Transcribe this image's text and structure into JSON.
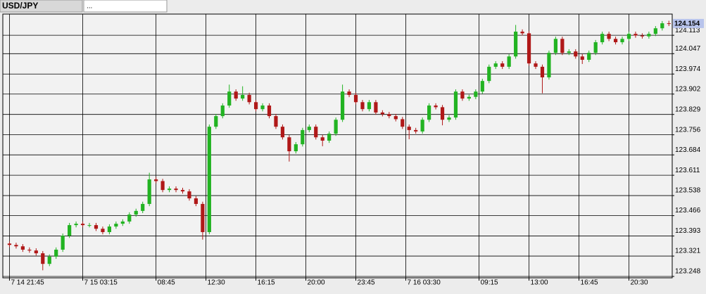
{
  "tabs": [
    "USD/JPY",
    "..."
  ],
  "chart_data": {
    "type": "candlestick",
    "x": [
      0,
      2,
      4,
      6,
      8,
      10,
      12,
      14,
      16,
      18,
      20,
      22,
      24,
      26,
      28,
      30,
      32,
      34,
      36,
      38,
      40,
      42,
      44,
      46,
      48,
      50,
      52,
      54,
      56,
      58,
      60,
      62,
      64,
      66,
      68,
      70,
      72,
      74,
      76,
      78,
      80,
      82,
      84,
      86,
      88,
      90,
      92,
      94,
      96,
      98,
      100,
      102,
      104,
      106,
      108,
      110,
      112,
      114,
      116,
      118,
      120,
      122,
      124,
      126,
      128,
      130,
      132,
      134,
      136,
      138,
      140,
      142,
      144,
      146,
      148,
      150,
      152,
      154,
      156,
      158,
      160,
      162,
      164,
      166,
      168,
      170,
      172,
      174,
      176,
      178,
      180,
      182,
      184,
      186,
      188,
      190,
      192,
      194,
      196,
      198
    ],
    "open": [
      123.366,
      123.361,
      123.356,
      123.344,
      123.341,
      123.331,
      123.293,
      123.319,
      123.344,
      123.394,
      123.432,
      123.437,
      123.432,
      123.432,
      123.419,
      123.407,
      123.427,
      123.437,
      123.445,
      123.47,
      123.483,
      123.508,
      123.596,
      123.59,
      123.558,
      123.563,
      123.558,
      123.553,
      123.528,
      123.508,
      123.407,
      123.785,
      123.823,
      123.861,
      123.911,
      123.886,
      123.899,
      123.873,
      123.848,
      123.861,
      123.823,
      123.785,
      123.747,
      123.697,
      123.722,
      123.773,
      123.785,
      123.747,
      123.735,
      123.76,
      123.81,
      123.911,
      123.899,
      123.873,
      123.848,
      123.873,
      123.836,
      123.83,
      123.823,
      123.812,
      123.785,
      123.773,
      123.768,
      123.81,
      123.861,
      123.855,
      123.81,
      123.818,
      123.911,
      123.886,
      123.892,
      123.911,
      123.949,
      124.0,
      124.012,
      124.0,
      124.037,
      124.126,
      124.12,
      124.012,
      124.0,
      123.962,
      124.05,
      124.1,
      124.05,
      124.055,
      124.037,
      124.025,
      124.05,
      124.088,
      124.118,
      124.1,
      124.088,
      124.1,
      124.118,
      124.112,
      124.109,
      124.118,
      124.138,
      124.156
    ],
    "high": [
      123.374,
      123.369,
      123.364,
      123.352,
      123.349,
      123.339,
      123.327,
      123.352,
      123.402,
      123.44,
      123.445,
      123.445,
      123.44,
      123.44,
      123.427,
      123.435,
      123.445,
      123.453,
      123.478,
      123.491,
      123.516,
      123.62,
      123.604,
      123.598,
      123.571,
      123.571,
      123.566,
      123.561,
      123.536,
      123.516,
      123.793,
      123.831,
      123.869,
      123.936,
      123.919,
      123.93,
      123.907,
      123.881,
      123.869,
      123.869,
      123.831,
      123.793,
      123.755,
      123.73,
      123.781,
      123.793,
      123.793,
      123.755,
      123.768,
      123.818,
      123.936,
      123.919,
      123.907,
      123.881,
      123.881,
      123.881,
      123.844,
      123.838,
      123.831,
      123.82,
      123.793,
      123.781,
      123.818,
      123.869,
      123.869,
      123.863,
      123.826,
      123.919,
      123.919,
      123.9,
      123.919,
      123.957,
      124.008,
      124.02,
      124.02,
      124.045,
      124.15,
      124.134,
      124.128,
      124.02,
      124.008,
      124.058,
      124.108,
      124.108,
      124.063,
      124.063,
      124.045,
      124.058,
      124.096,
      124.126,
      124.126,
      124.108,
      124.108,
      124.126,
      124.126,
      124.12,
      124.126,
      124.146,
      124.164,
      124.165
    ],
    "low": [
      123.353,
      123.348,
      123.336,
      123.333,
      123.323,
      123.27,
      123.285,
      123.311,
      123.336,
      123.386,
      123.424,
      123.424,
      123.424,
      123.411,
      123.399,
      123.399,
      123.419,
      123.429,
      123.437,
      123.462,
      123.475,
      123.5,
      123.582,
      123.55,
      123.55,
      123.55,
      123.545,
      123.52,
      123.5,
      123.38,
      123.399,
      123.777,
      123.815,
      123.853,
      123.878,
      123.878,
      123.865,
      123.84,
      123.84,
      123.815,
      123.777,
      123.739,
      123.66,
      123.689,
      123.714,
      123.765,
      123.739,
      123.715,
      123.727,
      123.752,
      123.802,
      123.891,
      123.865,
      123.84,
      123.84,
      123.828,
      123.822,
      123.815,
      123.804,
      123.777,
      123.74,
      123.76,
      123.76,
      123.802,
      123.847,
      123.79,
      123.802,
      123.81,
      123.878,
      123.878,
      123.884,
      123.903,
      123.941,
      123.992,
      123.992,
      123.992,
      124.029,
      124.112,
      124.004,
      123.992,
      123.905,
      123.954,
      124.042,
      124.042,
      124.042,
      124.029,
      124.01,
      124.017,
      124.042,
      124.08,
      124.092,
      124.08,
      124.08,
      124.092,
      124.104,
      124.101,
      124.101,
      124.11,
      124.13,
      124.146
    ],
    "close": [
      123.361,
      123.356,
      123.344,
      123.341,
      123.331,
      123.293,
      123.319,
      123.344,
      123.394,
      123.432,
      123.437,
      123.432,
      123.432,
      123.419,
      123.407,
      123.427,
      123.437,
      123.445,
      123.47,
      123.483,
      123.508,
      123.596,
      123.59,
      123.558,
      123.563,
      123.558,
      123.553,
      123.528,
      123.508,
      123.407,
      123.785,
      123.823,
      123.861,
      123.911,
      123.886,
      123.899,
      123.873,
      123.848,
      123.861,
      123.823,
      123.785,
      123.747,
      123.697,
      123.722,
      123.773,
      123.785,
      123.747,
      123.735,
      123.76,
      123.81,
      123.911,
      123.899,
      123.873,
      123.848,
      123.873,
      123.836,
      123.83,
      123.823,
      123.812,
      123.785,
      123.773,
      123.768,
      123.81,
      123.861,
      123.855,
      123.81,
      123.818,
      123.911,
      123.886,
      123.892,
      123.911,
      123.949,
      124.0,
      124.012,
      124.0,
      124.037,
      124.126,
      124.12,
      124.012,
      124.0,
      123.962,
      124.05,
      124.1,
      124.05,
      124.055,
      124.037,
      124.025,
      124.05,
      124.088,
      124.118,
      124.1,
      124.088,
      124.1,
      124.118,
      124.112,
      124.109,
      124.118,
      124.138,
      124.156,
      124.154
    ],
    "up_color": "#22b322",
    "down_color": "#b01818",
    "last_price": 124.154,
    "xlim": [
      -2,
      199
    ],
    "xticks": [
      {
        "value": 0,
        "label": "7 14 21:45"
      },
      {
        "value": 22,
        "label": "7 15 03:15"
      },
      {
        "value": 44,
        "label": "08:45"
      },
      {
        "value": 59,
        "label": "12:30"
      },
      {
        "value": 74,
        "label": "16:15"
      },
      {
        "value": 89,
        "label": "20:00"
      },
      {
        "value": 104,
        "label": "23:45"
      },
      {
        "value": 119,
        "label": "7 16 03:30"
      },
      {
        "value": 141,
        "label": "09:15"
      },
      {
        "value": 156,
        "label": "13:00"
      },
      {
        "value": 171,
        "label": "16:45"
      },
      {
        "value": 186,
        "label": "20:30"
      }
    ],
    "ylim": [
      123.243,
      124.189
    ],
    "yticks": [
      124.113,
      124.047,
      123.974,
      123.902,
      123.829,
      123.756,
      123.684,
      123.611,
      123.538,
      123.466,
      123.393,
      123.321,
      123.248
    ],
    "grid": true
  }
}
